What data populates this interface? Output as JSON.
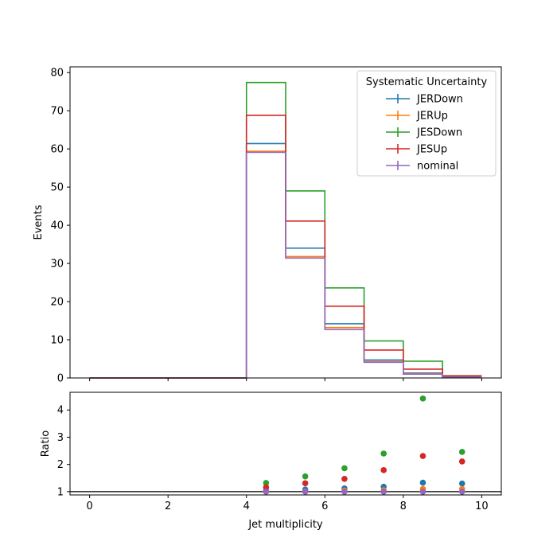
{
  "chart_data": [
    {
      "type": "step",
      "xlabel": "",
      "ylabel": "Events",
      "xlim": [
        -0.5,
        10.5
      ],
      "ylim": [
        0,
        81.5
      ],
      "xticks": [
        0,
        2,
        4,
        6,
        8,
        10
      ],
      "yticks": [
        0,
        10,
        20,
        30,
        40,
        50,
        60,
        70,
        80
      ],
      "bin_edges": [
        0,
        1,
        2,
        3,
        4,
        5,
        6,
        7,
        8,
        9,
        10
      ],
      "legend": {
        "title": "Systematic Uncertainty",
        "placement": "upper right"
      },
      "series": [
        {
          "name": "JERDown",
          "color": "#1f77b4",
          "values": [
            0,
            0,
            0,
            0,
            61.4,
            34.0,
            14.2,
            4.7,
            1.3,
            0.3
          ]
        },
        {
          "name": "JERUp",
          "color": "#ff7f0e",
          "values": [
            0,
            0,
            0,
            0,
            59.4,
            31.8,
            13.2,
            4.3,
            1.1,
            0.26
          ]
        },
        {
          "name": "JESDown",
          "color": "#2ca02c",
          "values": [
            0,
            0,
            0,
            0,
            77.4,
            49.0,
            23.6,
            9.7,
            4.4,
            0.6
          ]
        },
        {
          "name": "JESUp",
          "color": "#d62728",
          "values": [
            0,
            0,
            0,
            0,
            68.8,
            41.1,
            18.8,
            7.3,
            2.3,
            0.5
          ]
        },
        {
          "name": "nominal",
          "color": "#9467bd",
          "values": [
            0,
            0,
            0,
            0,
            59.1,
            31.4,
            12.7,
            4.1,
            1.0,
            0.24
          ]
        }
      ]
    },
    {
      "type": "scatter",
      "xlabel": "Jet multiplicity",
      "ylabel": "Ratio",
      "xlim": [
        -0.5,
        10.5
      ],
      "ylim": [
        0.88,
        4.65
      ],
      "xticks": [
        0,
        2,
        4,
        6,
        8,
        10
      ],
      "yticks": [
        1,
        2,
        3,
        4
      ],
      "reference_line": 1,
      "x": [
        4.5,
        5.5,
        6.5,
        7.5,
        8.5,
        9.5
      ],
      "series": [
        {
          "name": "JERDown",
          "color": "#1f77b4",
          "values": [
            1.04,
            1.08,
            1.12,
            1.18,
            1.33,
            1.3
          ]
        },
        {
          "name": "JERUp",
          "color": "#ff7f0e",
          "values": [
            1.005,
            1.01,
            1.04,
            1.05,
            1.1,
            1.1
          ]
        },
        {
          "name": "JESDown",
          "color": "#2ca02c",
          "values": [
            1.32,
            1.56,
            1.86,
            2.4,
            4.42,
            2.46
          ]
        },
        {
          "name": "JESUp",
          "color": "#d62728",
          "values": [
            1.16,
            1.31,
            1.47,
            1.79,
            2.31,
            2.11
          ]
        },
        {
          "name": "nominal",
          "color": "#9467bd",
          "values": [
            1.0,
            1.0,
            1.0,
            1.0,
            1.0,
            1.0
          ]
        }
      ]
    }
  ]
}
